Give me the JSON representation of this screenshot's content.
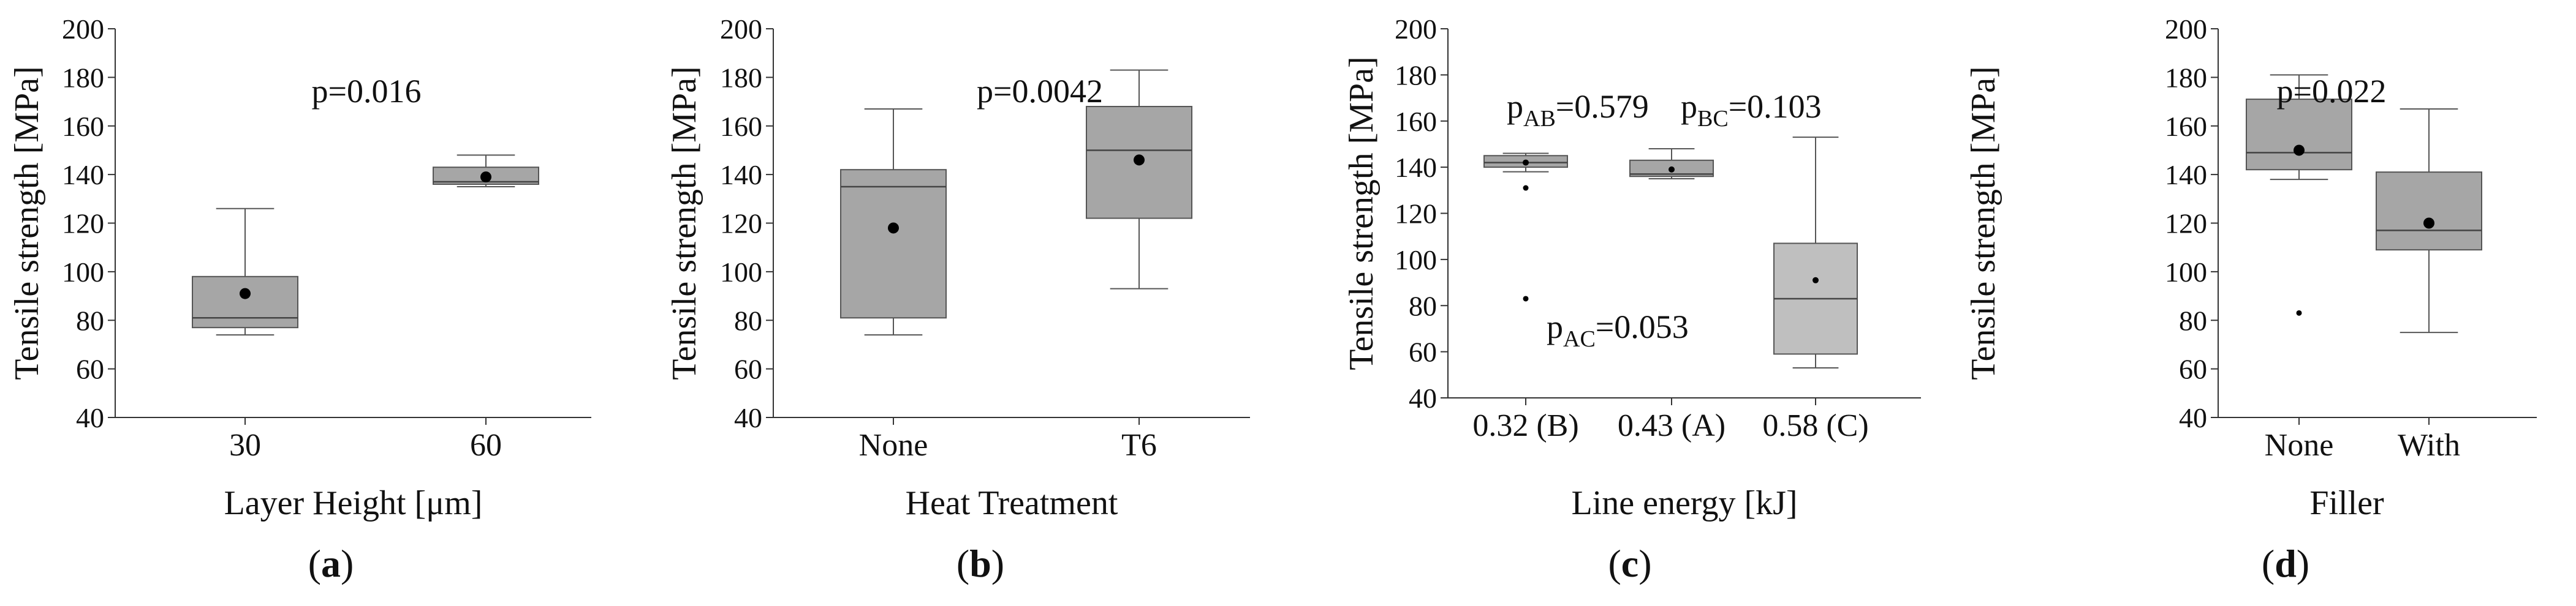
{
  "figure": {
    "panel_labels": [
      "(a)",
      "(b)",
      "(c)",
      "(d)"
    ]
  },
  "colors": {
    "box_fill_dark": "#a6a6a6",
    "box_fill_light": "#bfbfbf",
    "axis": "#333333",
    "whisker": "#555555",
    "text": "#111111"
  },
  "chart_data": [
    {
      "type": "box",
      "panel": "(a)",
      "xlabel": "Layer Height [μm]",
      "ylabel": "Tensile strength [MPa]",
      "ylim": [
        40,
        200
      ],
      "yticks": [
        40,
        60,
        80,
        100,
        120,
        140,
        160,
        180,
        200
      ],
      "categories": [
        "30",
        "60"
      ],
      "boxes": [
        {
          "category": "30",
          "whisker_low": 74,
          "q1": 77,
          "median": 81,
          "q3": 98,
          "whisker_high": 126,
          "mean": 91,
          "outliers": []
        },
        {
          "category": "60",
          "whisker_low": 135,
          "q1": 136,
          "median": 137,
          "q3": 143,
          "whisker_high": 148,
          "mean": 139,
          "outliers": []
        }
      ],
      "annotations": [
        {
          "text": "p=0.016"
        }
      ]
    },
    {
      "type": "box",
      "panel": "(b)",
      "xlabel": "Heat Treatment",
      "ylabel": "Tensile strength [MPa]",
      "ylim": [
        40,
        200
      ],
      "yticks": [
        40,
        60,
        80,
        100,
        120,
        140,
        160,
        180,
        200
      ],
      "categories": [
        "None",
        "T6"
      ],
      "boxes": [
        {
          "category": "None",
          "whisker_low": 74,
          "q1": 81,
          "median": 135,
          "q3": 142,
          "whisker_high": 167,
          "mean": 118,
          "outliers": []
        },
        {
          "category": "T6",
          "whisker_low": 93,
          "q1": 122,
          "median": 150,
          "q3": 168,
          "whisker_high": 183,
          "mean": 146,
          "outliers": []
        }
      ],
      "annotations": [
        {
          "text": "p=0.0042"
        }
      ]
    },
    {
      "type": "box",
      "panel": "(c)",
      "xlabel": "Line energy [kJ]",
      "ylabel": "Tensile strength [MPa]",
      "ylim": [
        40,
        200
      ],
      "yticks": [
        40,
        60,
        80,
        100,
        120,
        140,
        160,
        180,
        200
      ],
      "categories": [
        "0.32 (B)",
        "0.43 (A)",
        "0.58 (C)"
      ],
      "boxes": [
        {
          "category": "0.32 (B)",
          "whisker_low": 138,
          "q1": 140,
          "median": 142,
          "q3": 145,
          "whisker_high": 146,
          "mean": 142,
          "outliers": [
            131,
            83
          ]
        },
        {
          "category": "0.43 (A)",
          "whisker_low": 135,
          "q1": 136,
          "median": 137,
          "q3": 143,
          "whisker_high": 148,
          "mean": 139,
          "outliers": []
        },
        {
          "category": "0.58 (C)",
          "whisker_low": 53,
          "q1": 59,
          "median": 83,
          "q3": 107,
          "whisker_high": 153,
          "mean": 91,
          "outliers": []
        }
      ],
      "annotations": [
        {
          "p": "p",
          "sub": "AB",
          "value": "=0.579"
        },
        {
          "p": "p",
          "sub": "BC",
          "value": "=0.103"
        },
        {
          "p": "p",
          "sub": "AC",
          "value": "=0.053"
        }
      ]
    },
    {
      "type": "box",
      "panel": "(d)",
      "xlabel": "Filler",
      "ylabel": "Tensile strength [MPa]",
      "ylim": [
        40,
        200
      ],
      "yticks": [
        40,
        60,
        80,
        100,
        120,
        140,
        160,
        180,
        200
      ],
      "categories": [
        "None",
        "With"
      ],
      "boxes": [
        {
          "category": "None",
          "whisker_low": 138,
          "q1": 142,
          "median": 149,
          "q3": 171,
          "whisker_high": 181,
          "mean": 150,
          "outliers": [
            83
          ]
        },
        {
          "category": "With",
          "whisker_low": 75,
          "q1": 109,
          "median": 117,
          "q3": 141,
          "whisker_high": 167,
          "mean": 120,
          "outliers": []
        }
      ],
      "annotations": [
        {
          "text": "p=0.022"
        }
      ]
    }
  ]
}
